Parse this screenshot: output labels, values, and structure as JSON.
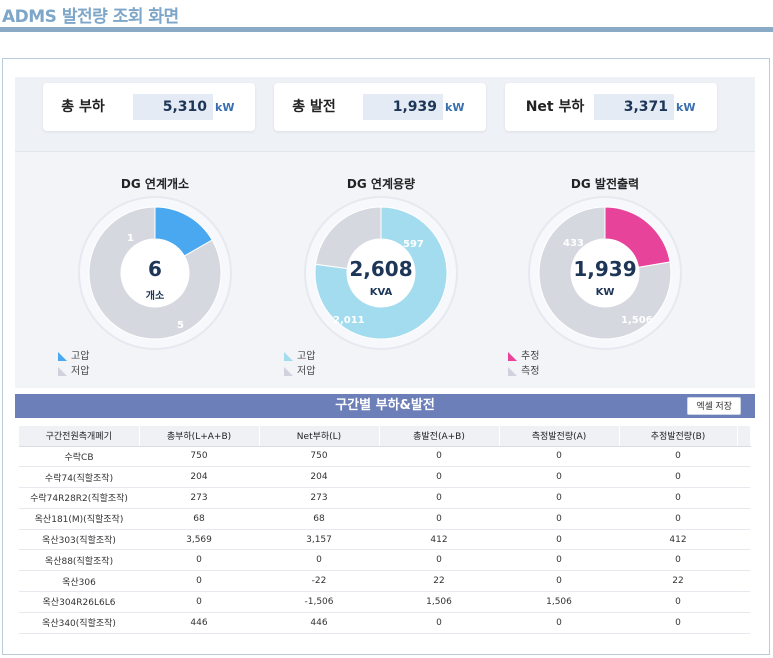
{
  "page_title": "ADMS 발전량 조회 화면",
  "summary": [
    {
      "label": "총 부하",
      "value": "5,310",
      "unit": "kW"
    },
    {
      "label": "총 발전",
      "value": "1,939",
      "unit": "kW"
    },
    {
      "label": "Net 부하",
      "value": "3,371",
      "unit": "kW"
    }
  ],
  "donuts": [
    {
      "title": "DG 연계개소",
      "center_value": "6",
      "center_unit": "개소",
      "segments": [
        {
          "label": "1",
          "value": 1,
          "color": "#4aa8f0"
        },
        {
          "label": "5",
          "value": 5,
          "color": "#d6d8e0"
        }
      ],
      "legend": [
        {
          "label": "고압",
          "color": "#4aa8f0"
        },
        {
          "label": "저압",
          "color": "#cfd2dc"
        }
      ]
    },
    {
      "title": "DG 연계용량",
      "center_value": "2,608",
      "center_unit": "KVA",
      "segments": [
        {
          "label": "2,011",
          "value": 2011,
          "color": "#a3dcef"
        },
        {
          "label": "597",
          "value": 597,
          "color": "#d6d8e0"
        }
      ],
      "legend": [
        {
          "label": "고압",
          "color": "#a3dcef"
        },
        {
          "label": "저압",
          "color": "#cfd2dc"
        }
      ]
    },
    {
      "title": "DG 발전출력",
      "center_value": "1,939",
      "center_unit": "KW",
      "segments": [
        {
          "label": "433",
          "value": 433,
          "color": "#e8439a"
        },
        {
          "label": "1,506",
          "value": 1506,
          "color": "#d6d8e0"
        }
      ],
      "legend": [
        {
          "label": "추정",
          "color": "#e8439a"
        },
        {
          "label": "측정",
          "color": "#cfd2dc"
        }
      ]
    }
  ],
  "section": {
    "title": "구간별 부하&발전",
    "excel_button": "엑셀 저장"
  },
  "table": {
    "headers": [
      "구간전원측개폐기",
      "총부하(L+A+B)",
      "Net부하(L)",
      "총발전(A+B)",
      "측정발전량(A)",
      "추정발전량(B)"
    ],
    "rows": [
      [
        "수락CB",
        "750",
        "750",
        "0",
        "0",
        "0"
      ],
      [
        "수락74(직할조작)",
        "204",
        "204",
        "0",
        "0",
        "0"
      ],
      [
        "수락74R28R2(직할조작)",
        "273",
        "273",
        "0",
        "0",
        "0"
      ],
      [
        "옥산181(M)(직할조작)",
        "68",
        "68",
        "0",
        "0",
        "0"
      ],
      [
        "옥산303(직할조작)",
        "3,569",
        "3,157",
        "412",
        "0",
        "412"
      ],
      [
        "옥산88(직할조작)",
        "0",
        "0",
        "0",
        "0",
        "0"
      ],
      [
        "옥산306",
        "0",
        "-22",
        "22",
        "0",
        "22"
      ],
      [
        "옥산304R26L6L6",
        "0",
        "-1,506",
        "1,506",
        "1,506",
        "0"
      ],
      [
        "옥산340(직할조작)",
        "446",
        "446",
        "0",
        "0",
        "0"
      ]
    ]
  }
}
